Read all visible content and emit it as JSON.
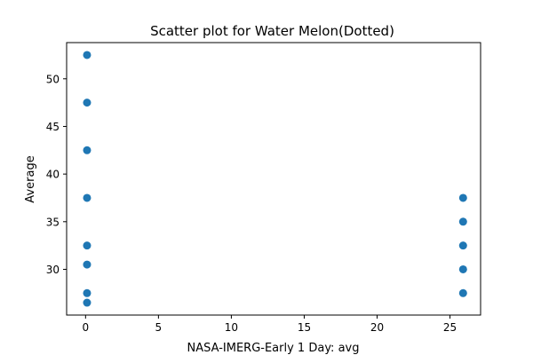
{
  "chart_data": {
    "type": "scatter",
    "title": "Scatter plot for Water Melon(Dotted)",
    "xlabel": "NASA-IMERG-Early 1 Day: avg",
    "ylabel": "Average",
    "xlim": [
      -1.3,
      27.1
    ],
    "ylim": [
      25.2,
      53.8
    ],
    "xticks": [
      0,
      5,
      10,
      15,
      20,
      25
    ],
    "yticks": [
      30,
      35,
      40,
      45,
      50
    ],
    "grid": false,
    "marker_color": "#1f77b4",
    "points": [
      {
        "x": 0.1,
        "y": 52.5
      },
      {
        "x": 0.1,
        "y": 47.5
      },
      {
        "x": 0.1,
        "y": 42.5
      },
      {
        "x": 0.1,
        "y": 37.5
      },
      {
        "x": 0.1,
        "y": 32.5
      },
      {
        "x": 0.1,
        "y": 30.5
      },
      {
        "x": 0.1,
        "y": 27.5
      },
      {
        "x": 0.1,
        "y": 26.5
      },
      {
        "x": 25.9,
        "y": 37.5
      },
      {
        "x": 25.9,
        "y": 35.0
      },
      {
        "x": 25.9,
        "y": 32.5
      },
      {
        "x": 25.9,
        "y": 30.0
      },
      {
        "x": 25.9,
        "y": 27.5
      }
    ]
  }
}
